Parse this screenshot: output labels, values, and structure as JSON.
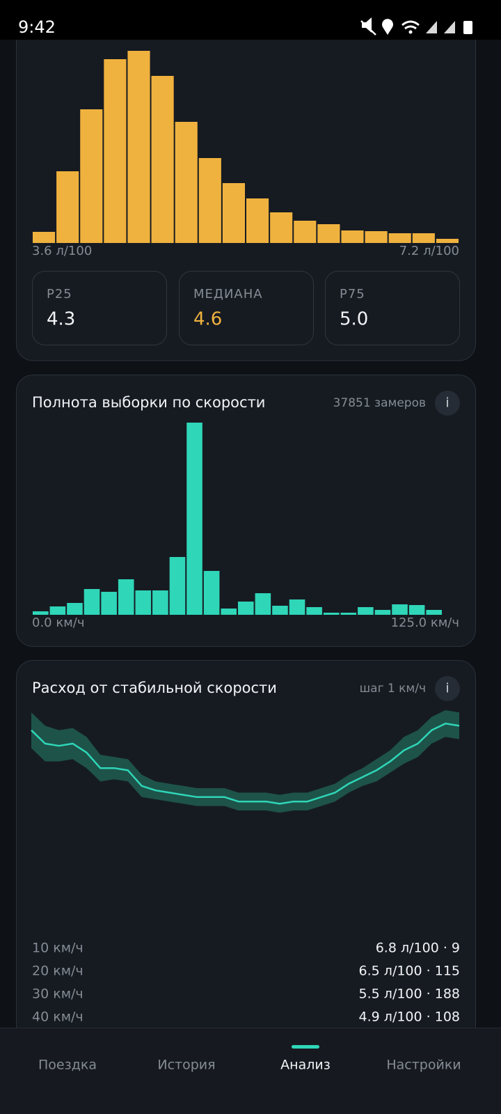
{
  "status_bar": {
    "time": "9:42"
  },
  "fuel_histogram": {
    "type": "bar",
    "color": "#f0b23e",
    "values": [
      16,
      103,
      192,
      264,
      276,
      240,
      174,
      122,
      86,
      64,
      44,
      32,
      27,
      18,
      17,
      14,
      14,
      6
    ],
    "x_start_label": "3.6 л/100",
    "x_end_label": "7.2 л/100",
    "stats": [
      {
        "label": "P25",
        "value": "4.3"
      },
      {
        "label": "МЕДИАНА",
        "value": "4.6",
        "color": "#f0b23e"
      },
      {
        "label": "P75",
        "value": "5.0"
      }
    ]
  },
  "speed_coverage": {
    "type": "bar",
    "title": "Полнота выборки по скорости",
    "meta": "37851 замеров",
    "info": "i",
    "color": "#2fd6b8",
    "values": [
      5,
      12,
      17,
      37,
      33,
      51,
      35,
      35,
      83,
      276,
      63,
      9,
      19,
      31,
      13,
      22,
      11,
      3,
      3,
      11,
      7,
      15,
      14,
      7
    ],
    "x_start_label": "0.0 км/ч",
    "x_end_label": "125.0 км/ч"
  },
  "consumption": {
    "type": "line",
    "title": "Расход от стабильной скорости",
    "meta": "шаг 1 км/ч",
    "info": "i",
    "color": "#2fd6b8",
    "band_color": "#1f5a4f",
    "ylim": [
      0,
      10
    ],
    "values": [
      9.1,
      8.5,
      8.4,
      8.5,
      8.1,
      7.4,
      7.4,
      7.3,
      6.6,
      6.4,
      6.3,
      6.2,
      6.1,
      6.1,
      6.1,
      5.9,
      5.9,
      5.9,
      5.8,
      5.9,
      5.9,
      6.1,
      6.3,
      6.7,
      7.0,
      7.3,
      7.7,
      8.2,
      8.5,
      9.1,
      9.4,
      9.3
    ],
    "spread": [
      0.8,
      0.8,
      0.7,
      0.7,
      0.7,
      0.6,
      0.5,
      0.5,
      0.5,
      0.4,
      0.4,
      0.4,
      0.4,
      0.4,
      0.4,
      0.4,
      0.4,
      0.4,
      0.4,
      0.4,
      0.4,
      0.4,
      0.4,
      0.4,
      0.4,
      0.5,
      0.5,
      0.6,
      0.6,
      0.6,
      0.6,
      0.6
    ],
    "rows": [
      {
        "speed": "10 км/ч",
        "value": "6.8 л/100 · 9"
      },
      {
        "speed": "20 км/ч",
        "value": "6.5 л/100 · 115"
      },
      {
        "speed": "30 км/ч",
        "value": "5.5 л/100 · 188"
      },
      {
        "speed": "40 км/ч",
        "value": "4.9 л/100 · 108"
      }
    ]
  },
  "nav": {
    "items": [
      "Поездка",
      "История",
      "Анализ",
      "Настройки"
    ],
    "active": 2
  }
}
